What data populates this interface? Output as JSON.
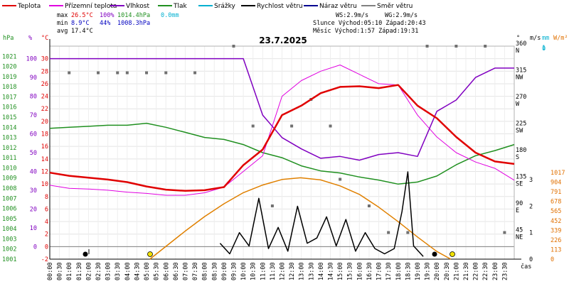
{
  "chart_data": {
    "type": "line",
    "title": "23.7.2025",
    "legend": [
      {
        "label": "Teplota",
        "color": "#e00000"
      },
      {
        "label": "Přízemní teplota",
        "color": "#e000e0"
      },
      {
        "label": "Vlhkost",
        "color": "#8000c0"
      },
      {
        "label": "Tlak",
        "color": "#209020"
      },
      {
        "label": "Srážky",
        "color": "#00b0d0"
      },
      {
        "label": "Rychlost větru",
        "color": "#000000"
      },
      {
        "label": "Náraz větru",
        "color": "#000090"
      },
      {
        "label": "Směr větru",
        "color": "#808080"
      }
    ],
    "stats": {
      "max_label": "max",
      "max_temp": "26.5°C",
      "max_hum": "100%",
      "max_press": "1014.4hPa",
      "rain": "0.0mm",
      "min_label": "min",
      "min_temp": "8.9°C",
      "min_hum": "44%",
      "min_press": "1008.3hPa",
      "avg_label": "avg",
      "avg_temp": "17.4°C",
      "ws": "WS:2.9m/s",
      "wg": "WG:2.9m/s",
      "sun": "Slunce Východ:05:10   Západ:20:43",
      "moon": "Měsíc  Východ:1:57    Západ:19:31"
    },
    "axis_titles": {
      "hpa": "hPa",
      "pct": "%",
      "temp": "°C",
      "dir": "°",
      "ms": "m/s",
      "mm": "mm",
      "wm2": "W/m²",
      "time": "čas"
    },
    "xticks": [
      "00:00",
      "00:30",
      "01:00",
      "01:30",
      "02:00",
      "02:30",
      "03:00",
      "03:30",
      "04:00",
      "04:30",
      "05:00",
      "05:30",
      "06:00",
      "06:30",
      "07:00",
      "07:30",
      "08:00",
      "08:30",
      "09:00",
      "09:30",
      "10:00",
      "10:30",
      "11:00",
      "11:30",
      "12:00",
      "12:30",
      "13:00",
      "13:30",
      "14:00",
      "14:30",
      "15:00",
      "15:30",
      "16:00",
      "16:30",
      "17:00",
      "17:30",
      "18:00",
      "18:30",
      "19:00",
      "19:30",
      "20:00",
      "20:30",
      "21:00",
      "21:30",
      "22:00",
      "22:30",
      "23:00",
      "23:30"
    ],
    "xrange_hours": [
      0,
      24
    ],
    "temp_range": [
      -2,
      32
    ],
    "temp_ticks": [
      -2,
      0,
      2,
      4,
      6,
      8,
      10,
      12,
      14,
      16,
      18,
      20,
      22,
      24,
      26,
      28,
      30
    ],
    "hpa_ticks": [
      1001,
      1002,
      1003,
      1004,
      1005,
      1006,
      1007,
      1008,
      1009,
      1010,
      1011,
      1012,
      1013,
      1014,
      1015,
      1016,
      1017,
      1018,
      1019,
      1020,
      1021
    ],
    "hpa_range": [
      1001,
      1022
    ],
    "pct_ticks": [
      0,
      10,
      20,
      30,
      40,
      50,
      60,
      70,
      80,
      90,
      100
    ],
    "dir_ticks": [
      {
        "deg": "45",
        "name": "NE"
      },
      {
        "deg": "90",
        "name": "E"
      },
      {
        "deg": "135",
        "name": "SE"
      },
      {
        "deg": "180",
        "name": "S"
      },
      {
        "deg": "225",
        "name": "SW"
      },
      {
        "deg": "270",
        "name": "W"
      },
      {
        "deg": "315",
        "name": "NW"
      },
      {
        "deg": "360",
        "name": "N"
      }
    ],
    "ms_ticks": [
      0,
      1,
      2,
      3
    ],
    "mm_ticks": [
      "0",
      "1"
    ],
    "wm2_ticks": [
      0,
      113,
      226,
      339,
      452,
      565,
      678,
      791,
      904,
      1017
    ],
    "temperature": {
      "t": [
        0,
        1,
        2,
        3,
        4,
        5,
        6,
        7,
        8,
        9,
        10,
        11,
        12,
        13,
        14,
        15,
        16,
        17,
        18,
        19,
        20,
        21,
        22,
        23,
        24
      ],
      "v": [
        11.8,
        11.3,
        11.0,
        10.7,
        10.3,
        9.6,
        9.1,
        8.9,
        9.0,
        9.5,
        13.0,
        15.5,
        21.0,
        22.5,
        24.5,
        25.5,
        25.6,
        25.3,
        25.8,
        22.5,
        20.5,
        17.5,
        15.0,
        13.6,
        13.2
      ]
    },
    "ground_temperature": {
      "t": [
        0,
        1,
        2,
        3,
        4,
        5,
        6,
        7,
        8,
        9,
        10,
        11,
        12,
        13,
        14,
        15,
        16,
        17,
        18,
        19,
        20,
        21,
        22,
        23,
        24
      ],
      "v": [
        9.8,
        9.3,
        9.2,
        9.0,
        8.7,
        8.5,
        8.2,
        8.2,
        8.6,
        9.5,
        12.0,
        14.5,
        24.0,
        26.5,
        28.0,
        29.0,
        27.5,
        26.0,
        25.8,
        21.0,
        17.5,
        15.0,
        13.5,
        12.5,
        10.6
      ]
    },
    "humidity": {
      "t": [
        0,
        1,
        2,
        3,
        4,
        5,
        6,
        7,
        8,
        9,
        10,
        11,
        12,
        13,
        14,
        15,
        16,
        17,
        18,
        19,
        20,
        21,
        22,
        23,
        24
      ],
      "v": [
        100,
        100,
        100,
        100,
        100,
        100,
        100,
        100,
        100,
        100,
        100,
        70,
        58,
        52,
        47,
        48,
        46,
        49,
        50,
        48,
        72,
        78,
        90,
        95,
        95
      ]
    },
    "pressure": {
      "t": [
        0,
        1,
        2,
        3,
        4,
        5,
        6,
        7,
        8,
        9,
        10,
        11,
        12,
        13,
        14,
        15,
        16,
        17,
        18,
        19,
        20,
        21,
        22,
        23,
        24
      ],
      "v": [
        1013.9,
        1014.0,
        1014.1,
        1014.2,
        1014.2,
        1014.4,
        1014.0,
        1013.5,
        1013.0,
        1012.8,
        1012.3,
        1011.5,
        1011.0,
        1010.2,
        1009.7,
        1009.5,
        1009.1,
        1008.8,
        1008.4,
        1008.6,
        1009.2,
        1010.3,
        1011.2,
        1011.7,
        1012.3
      ]
    },
    "wind_speed": {
      "t": [
        8.8,
        9.3,
        9.8,
        10.3,
        10.8,
        11.3,
        11.8,
        12.3,
        12.8,
        13.3,
        13.8,
        14.3,
        14.8,
        15.3,
        15.8,
        16.3,
        16.8,
        17.3,
        17.8,
        18.2,
        18.5,
        18.8,
        19.3
      ],
      "v": [
        0.6,
        0.2,
        1.0,
        0.5,
        2.3,
        0.4,
        1.2,
        0.3,
        2.0,
        0.6,
        0.8,
        1.6,
        0.5,
        1.5,
        0.3,
        1.0,
        0.4,
        0.2,
        0.4,
        1.8,
        3.3,
        0.5,
        0.1
      ]
    },
    "wind_direction_points": {
      "t": [
        1.0,
        2.5,
        3.5,
        4.0,
        5.0,
        6.0,
        7.5,
        9.5,
        10.5,
        11.5,
        12.5,
        13.5,
        14.5,
        15.0,
        16.5,
        17.5,
        18.5,
        19.5,
        21.0,
        22.5,
        23.5
      ],
      "deg": [
        315,
        315,
        315,
        315,
        315,
        315,
        315,
        360,
        225,
        90,
        225,
        270,
        225,
        135,
        90,
        45,
        45,
        360,
        360,
        360,
        45
      ]
    },
    "solar_radiation": {
      "t": [
        5.17,
        6,
        7,
        8,
        9,
        10,
        11,
        12,
        12.96,
        14,
        15,
        16,
        17,
        18,
        19,
        20,
        20.72
      ],
      "v": [
        0,
        150,
        330,
        500,
        650,
        780,
        870,
        935,
        955,
        930,
        860,
        760,
        610,
        440,
        260,
        90,
        0
      ]
    }
  }
}
